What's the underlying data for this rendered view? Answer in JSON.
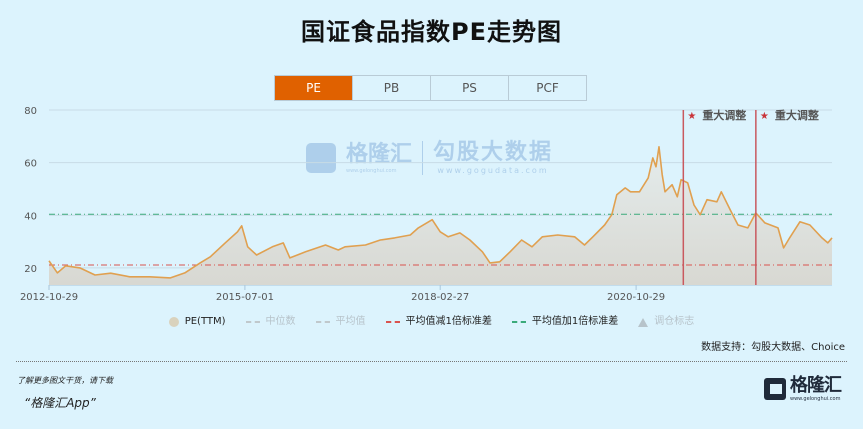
{
  "title": "国证食品指数PE走势图",
  "tabs": [
    {
      "label": "PE",
      "active": true
    },
    {
      "label": "PB",
      "active": false
    },
    {
      "label": "PS",
      "active": false
    },
    {
      "label": "PCF",
      "active": false
    }
  ],
  "colors": {
    "accent": "#e06100",
    "line": "#e0a050",
    "area": "#dcdcd6",
    "mean_minus_sd": "#d9534f",
    "mean_plus_sd": "#3aaa7a",
    "event": "#c9595f",
    "background": "#dcf3fd"
  },
  "watermark": {
    "brand": "格隆汇",
    "brand_url": "www.gelonghui.com",
    "data_brand": "勾股大数据",
    "data_url": "www.gogudata.com"
  },
  "chart_data": {
    "type": "area",
    "title": "国证食品指数PE走势图",
    "xlabel": "",
    "ylabel": "",
    "ylim": [
      13.5,
      80
    ],
    "xlim": [
      "2012-10-29",
      "2023-07-01"
    ],
    "grid": true,
    "y_ticks": [
      20,
      40,
      60,
      80
    ],
    "x_ticks": [
      "2012-10-29",
      "2015-07-01",
      "2018-02-27",
      "2020-10-29"
    ],
    "series": [
      {
        "name": "PE(TTM)",
        "points": [
          [
            "2012-10-29",
            22.7
          ],
          [
            "2012-12-10",
            18.1
          ],
          [
            "2013-01-20",
            20.8
          ],
          [
            "2013-04-01",
            20.0
          ],
          [
            "2013-06-15",
            17.3
          ],
          [
            "2013-09-01",
            18.0
          ],
          [
            "2013-12-05",
            16.6
          ],
          [
            "2014-03-15",
            16.6
          ],
          [
            "2014-06-25",
            16.2
          ],
          [
            "2014-09-05",
            18.1
          ],
          [
            "2014-11-20",
            21.9
          ],
          [
            "2015-01-10",
            24.2
          ],
          [
            "2015-03-25",
            29.5
          ],
          [
            "2015-05-25",
            33.7
          ],
          [
            "2015-06-15",
            36.0
          ],
          [
            "2015-07-15",
            28.0
          ],
          [
            "2015-08-28",
            24.9
          ],
          [
            "2015-11-15",
            28.0
          ],
          [
            "2016-01-08",
            29.5
          ],
          [
            "2016-02-10",
            23.8
          ],
          [
            "2016-04-28",
            26.1
          ],
          [
            "2016-08-05",
            28.7
          ],
          [
            "2016-10-08",
            26.8
          ],
          [
            "2016-11-10",
            28.0
          ],
          [
            "2017-02-20",
            28.7
          ],
          [
            "2017-05-05",
            30.6
          ],
          [
            "2017-07-15",
            31.4
          ],
          [
            "2017-10-01",
            32.5
          ],
          [
            "2017-11-10",
            35.2
          ],
          [
            "2018-01-18",
            38.3
          ],
          [
            "2018-02-27",
            33.7
          ],
          [
            "2018-04-08",
            31.8
          ],
          [
            "2018-06-05",
            33.3
          ],
          [
            "2018-07-25",
            30.6
          ],
          [
            "2018-09-25",
            26.1
          ],
          [
            "2018-11-02",
            21.9
          ],
          [
            "2018-12-20",
            22.3
          ],
          [
            "2019-02-10",
            26.1
          ],
          [
            "2019-04-08",
            30.6
          ],
          [
            "2019-05-30",
            28.0
          ],
          [
            "2019-07-20",
            31.8
          ],
          [
            "2019-10-05",
            32.5
          ],
          [
            "2019-12-28",
            31.8
          ],
          [
            "2020-02-15",
            28.7
          ],
          [
            "2020-03-28",
            31.8
          ],
          [
            "2020-05-25",
            36.3
          ],
          [
            "2020-06-30",
            40.2
          ],
          [
            "2020-07-25",
            47.8
          ],
          [
            "2020-09-05",
            50.4
          ],
          [
            "2020-10-01",
            48.9
          ],
          [
            "2020-11-15",
            48.9
          ],
          [
            "2020-12-28",
            54.2
          ],
          [
            "2021-01-20",
            61.8
          ],
          [
            "2021-02-05",
            58.4
          ],
          [
            "2021-02-20",
            66.0
          ],
          [
            "2021-03-08",
            55.4
          ],
          [
            "2021-03-22",
            48.9
          ],
          [
            "2021-04-26",
            51.6
          ],
          [
            "2021-05-22",
            47.0
          ],
          [
            "2021-06-10",
            53.5
          ],
          [
            "2021-07-13",
            52.3
          ],
          [
            "2021-08-13",
            43.9
          ],
          [
            "2021-09-13",
            40.2
          ],
          [
            "2021-10-17",
            45.9
          ],
          [
            "2021-12-05",
            45.1
          ],
          [
            "2021-12-27",
            48.9
          ],
          [
            "2022-02-10",
            42.0
          ],
          [
            "2022-03-20",
            36.3
          ],
          [
            "2022-05-08",
            35.2
          ],
          [
            "2022-06-17",
            40.9
          ],
          [
            "2022-08-01",
            37.1
          ],
          [
            "2022-10-05",
            35.2
          ],
          [
            "2022-11-02",
            27.6
          ],
          [
            "2022-12-02",
            31.4
          ],
          [
            "2023-01-22",
            37.5
          ],
          [
            "2023-03-13",
            36.3
          ],
          [
            "2023-05-12",
            31.4
          ],
          [
            "2023-06-10",
            29.5
          ],
          [
            "2023-07-01",
            31.4
          ]
        ]
      }
    ],
    "reference_lines": [
      {
        "name": "平均值减1倍标准差",
        "value": 21.1,
        "color": "#d9534f"
      },
      {
        "name": "平均值加1倍标准差",
        "value": 40.4,
        "color": "#3aaa7a"
      }
    ],
    "events": [
      {
        "date": "2021-06-21",
        "label": "重大调整",
        "marker": "★"
      },
      {
        "date": "2022-06-17",
        "label": "重大调整",
        "marker": "★"
      }
    ],
    "legend": {
      "placement": "bottom",
      "items": [
        {
          "label": "PE(TTM)",
          "enabled": true,
          "icon": "circle"
        },
        {
          "label": "中位数",
          "enabled": false,
          "icon": "dash"
        },
        {
          "label": "平均值",
          "enabled": false,
          "icon": "dash"
        },
        {
          "label": "平均值减1倍标准差",
          "enabled": true,
          "icon": "dash",
          "color": "#d9534f"
        },
        {
          "label": "平均值加1倍标准差",
          "enabled": true,
          "icon": "dash",
          "color": "#3aaa7a"
        },
        {
          "label": "调仓标志",
          "enabled": false,
          "icon": "triangle"
        }
      ]
    }
  },
  "footer": {
    "source": "数据支持：勾股大数据、Choice",
    "promo": "了解更多图文干货，请下载",
    "app": "“格隆汇App”",
    "logo_text": "格隆汇",
    "logo_url": "www.gelonghui.com"
  }
}
